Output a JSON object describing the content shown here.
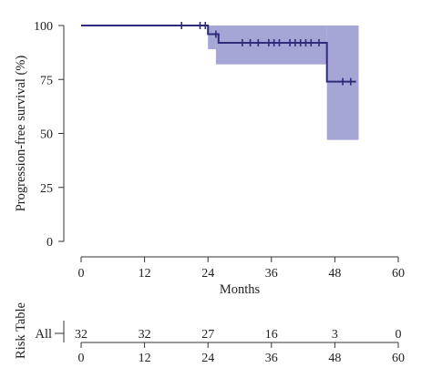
{
  "chart_data": {
    "type": "line",
    "subtype": "kaplan-meier",
    "title": "",
    "xlabel": "Months",
    "ylabel": "Progression-free survival (%)",
    "xlim": [
      0,
      60
    ],
    "ylim": [
      0,
      100
    ],
    "xticks": [
      0,
      12,
      24,
      36,
      48,
      60
    ],
    "yticks": [
      0,
      25,
      50,
      75,
      100
    ],
    "grid": false,
    "colors": {
      "line": "#2e2c7a",
      "ci": "#9b9bd1"
    },
    "series": [
      {
        "steps": [
          {
            "x": 0,
            "y": 100
          },
          {
            "x": 24,
            "y": 96
          },
          {
            "x": 26,
            "y": 92
          },
          {
            "x": 46.5,
            "y": 74
          },
          {
            "x": 52,
            "y": 74
          }
        ],
        "censored": [
          {
            "x": 19,
            "y": 100
          },
          {
            "x": 22.5,
            "y": 100
          },
          {
            "x": 23.5,
            "y": 100
          },
          {
            "x": 25.5,
            "y": 96
          },
          {
            "x": 30.5,
            "y": 92
          },
          {
            "x": 32,
            "y": 92
          },
          {
            "x": 33.5,
            "y": 92
          },
          {
            "x": 35.5,
            "y": 92
          },
          {
            "x": 36.5,
            "y": 92
          },
          {
            "x": 37.5,
            "y": 92
          },
          {
            "x": 39.5,
            "y": 92
          },
          {
            "x": 40.5,
            "y": 92
          },
          {
            "x": 41.5,
            "y": 92
          },
          {
            "x": 42.5,
            "y": 92
          },
          {
            "x": 43.5,
            "y": 92
          },
          {
            "x": 45,
            "y": 92
          },
          {
            "x": 49.5,
            "y": 74
          },
          {
            "x": 51,
            "y": 74
          }
        ],
        "ci": [
          {
            "x0": 24,
            "x1": 25.5,
            "lo": 89,
            "hi": 100
          },
          {
            "x0": 25.5,
            "x1": 46.5,
            "lo": 82,
            "hi": 100
          },
          {
            "x0": 46.5,
            "x1": 52.5,
            "lo": 47,
            "hi": 100
          }
        ]
      }
    ],
    "risk_table": {
      "title": "Risk Table",
      "group": "All",
      "times": [
        0,
        12,
        24,
        36,
        48,
        60
      ],
      "counts": [
        32,
        32,
        27,
        16,
        3,
        0
      ]
    }
  }
}
